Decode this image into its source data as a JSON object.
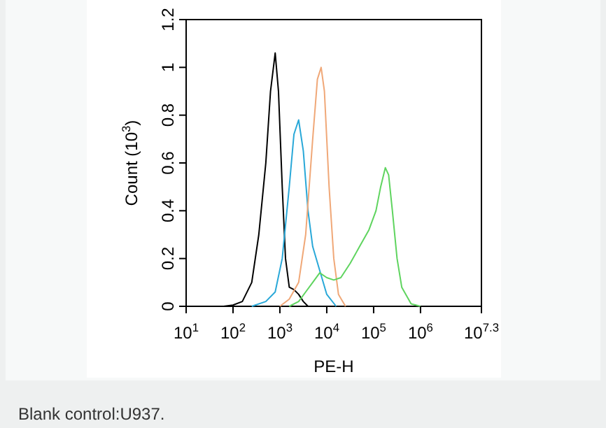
{
  "chart_data": {
    "type": "line",
    "xlabel": "PE-H",
    "ylabel": "Count (10$^{3}$)",
    "log": "x",
    "xlim": [
      10,
      19952623
    ],
    "ylim": [
      0,
      1.2
    ],
    "xticks": [
      {
        "value": 10,
        "label": "10$^{1}$"
      },
      {
        "value": 100,
        "label": "10$^{2}$"
      },
      {
        "value": 1000,
        "label": "10$^{3}$"
      },
      {
        "value": 10000,
        "label": "10$^{4}$"
      },
      {
        "value": 100000,
        "label": "10$^{5}$"
      },
      {
        "value": 1000000,
        "label": "10$^{6}$"
      },
      {
        "value": 19952623,
        "label": "10$^{7.3}$"
      }
    ],
    "yticks": [
      0,
      0.2,
      0.4,
      0.6,
      0.8,
      1,
      1.2
    ],
    "grid": false,
    "marker": "none",
    "line_style": "solid",
    "series": [
      {
        "color": "#000000",
        "x": [
          63,
          100,
          158,
          251,
          355,
          501,
          631,
          794,
          933,
          1122,
          1318,
          1585,
          1995,
          2512,
          3162,
          3981
        ],
        "values": [
          0,
          0.005,
          0.02,
          0.1,
          0.3,
          0.6,
          0.9,
          1.06,
          0.9,
          0.5,
          0.2,
          0.08,
          0.07,
          0.05,
          0.02,
          0
        ]
      },
      {
        "color": "#29a8d8",
        "x": [
          251,
          501,
          794,
          1122,
          1585,
          1995,
          2512,
          3162,
          3981,
          5012,
          7079,
          10000,
          15849
        ],
        "values": [
          0,
          0.02,
          0.06,
          0.2,
          0.5,
          0.72,
          0.78,
          0.65,
          0.4,
          0.25,
          0.15,
          0.05,
          0
        ]
      },
      {
        "color": "#f0a878",
        "x": [
          1000,
          1585,
          2512,
          3548,
          5012,
          6310,
          7586,
          8913,
          11220,
          14125,
          17783,
          25119
        ],
        "values": [
          0,
          0.03,
          0.1,
          0.3,
          0.7,
          0.95,
          1.0,
          0.9,
          0.5,
          0.2,
          0.05,
          0
        ]
      },
      {
        "color": "#5fd45f",
        "x": [
          1585,
          2512,
          3548,
          5012,
          7079,
          10000,
          14125,
          19953,
          31623,
          50119,
          79433,
          112202,
          141254,
          177828,
          208930,
          251189,
          316228,
          398107,
          630957,
          1000000
        ],
        "values": [
          0,
          0.02,
          0.06,
          0.1,
          0.14,
          0.12,
          0.11,
          0.12,
          0.18,
          0.25,
          0.32,
          0.4,
          0.5,
          0.58,
          0.55,
          0.4,
          0.2,
          0.08,
          0.01,
          0
        ]
      }
    ],
    "annotations": [
      "Blank control:U937."
    ]
  }
}
